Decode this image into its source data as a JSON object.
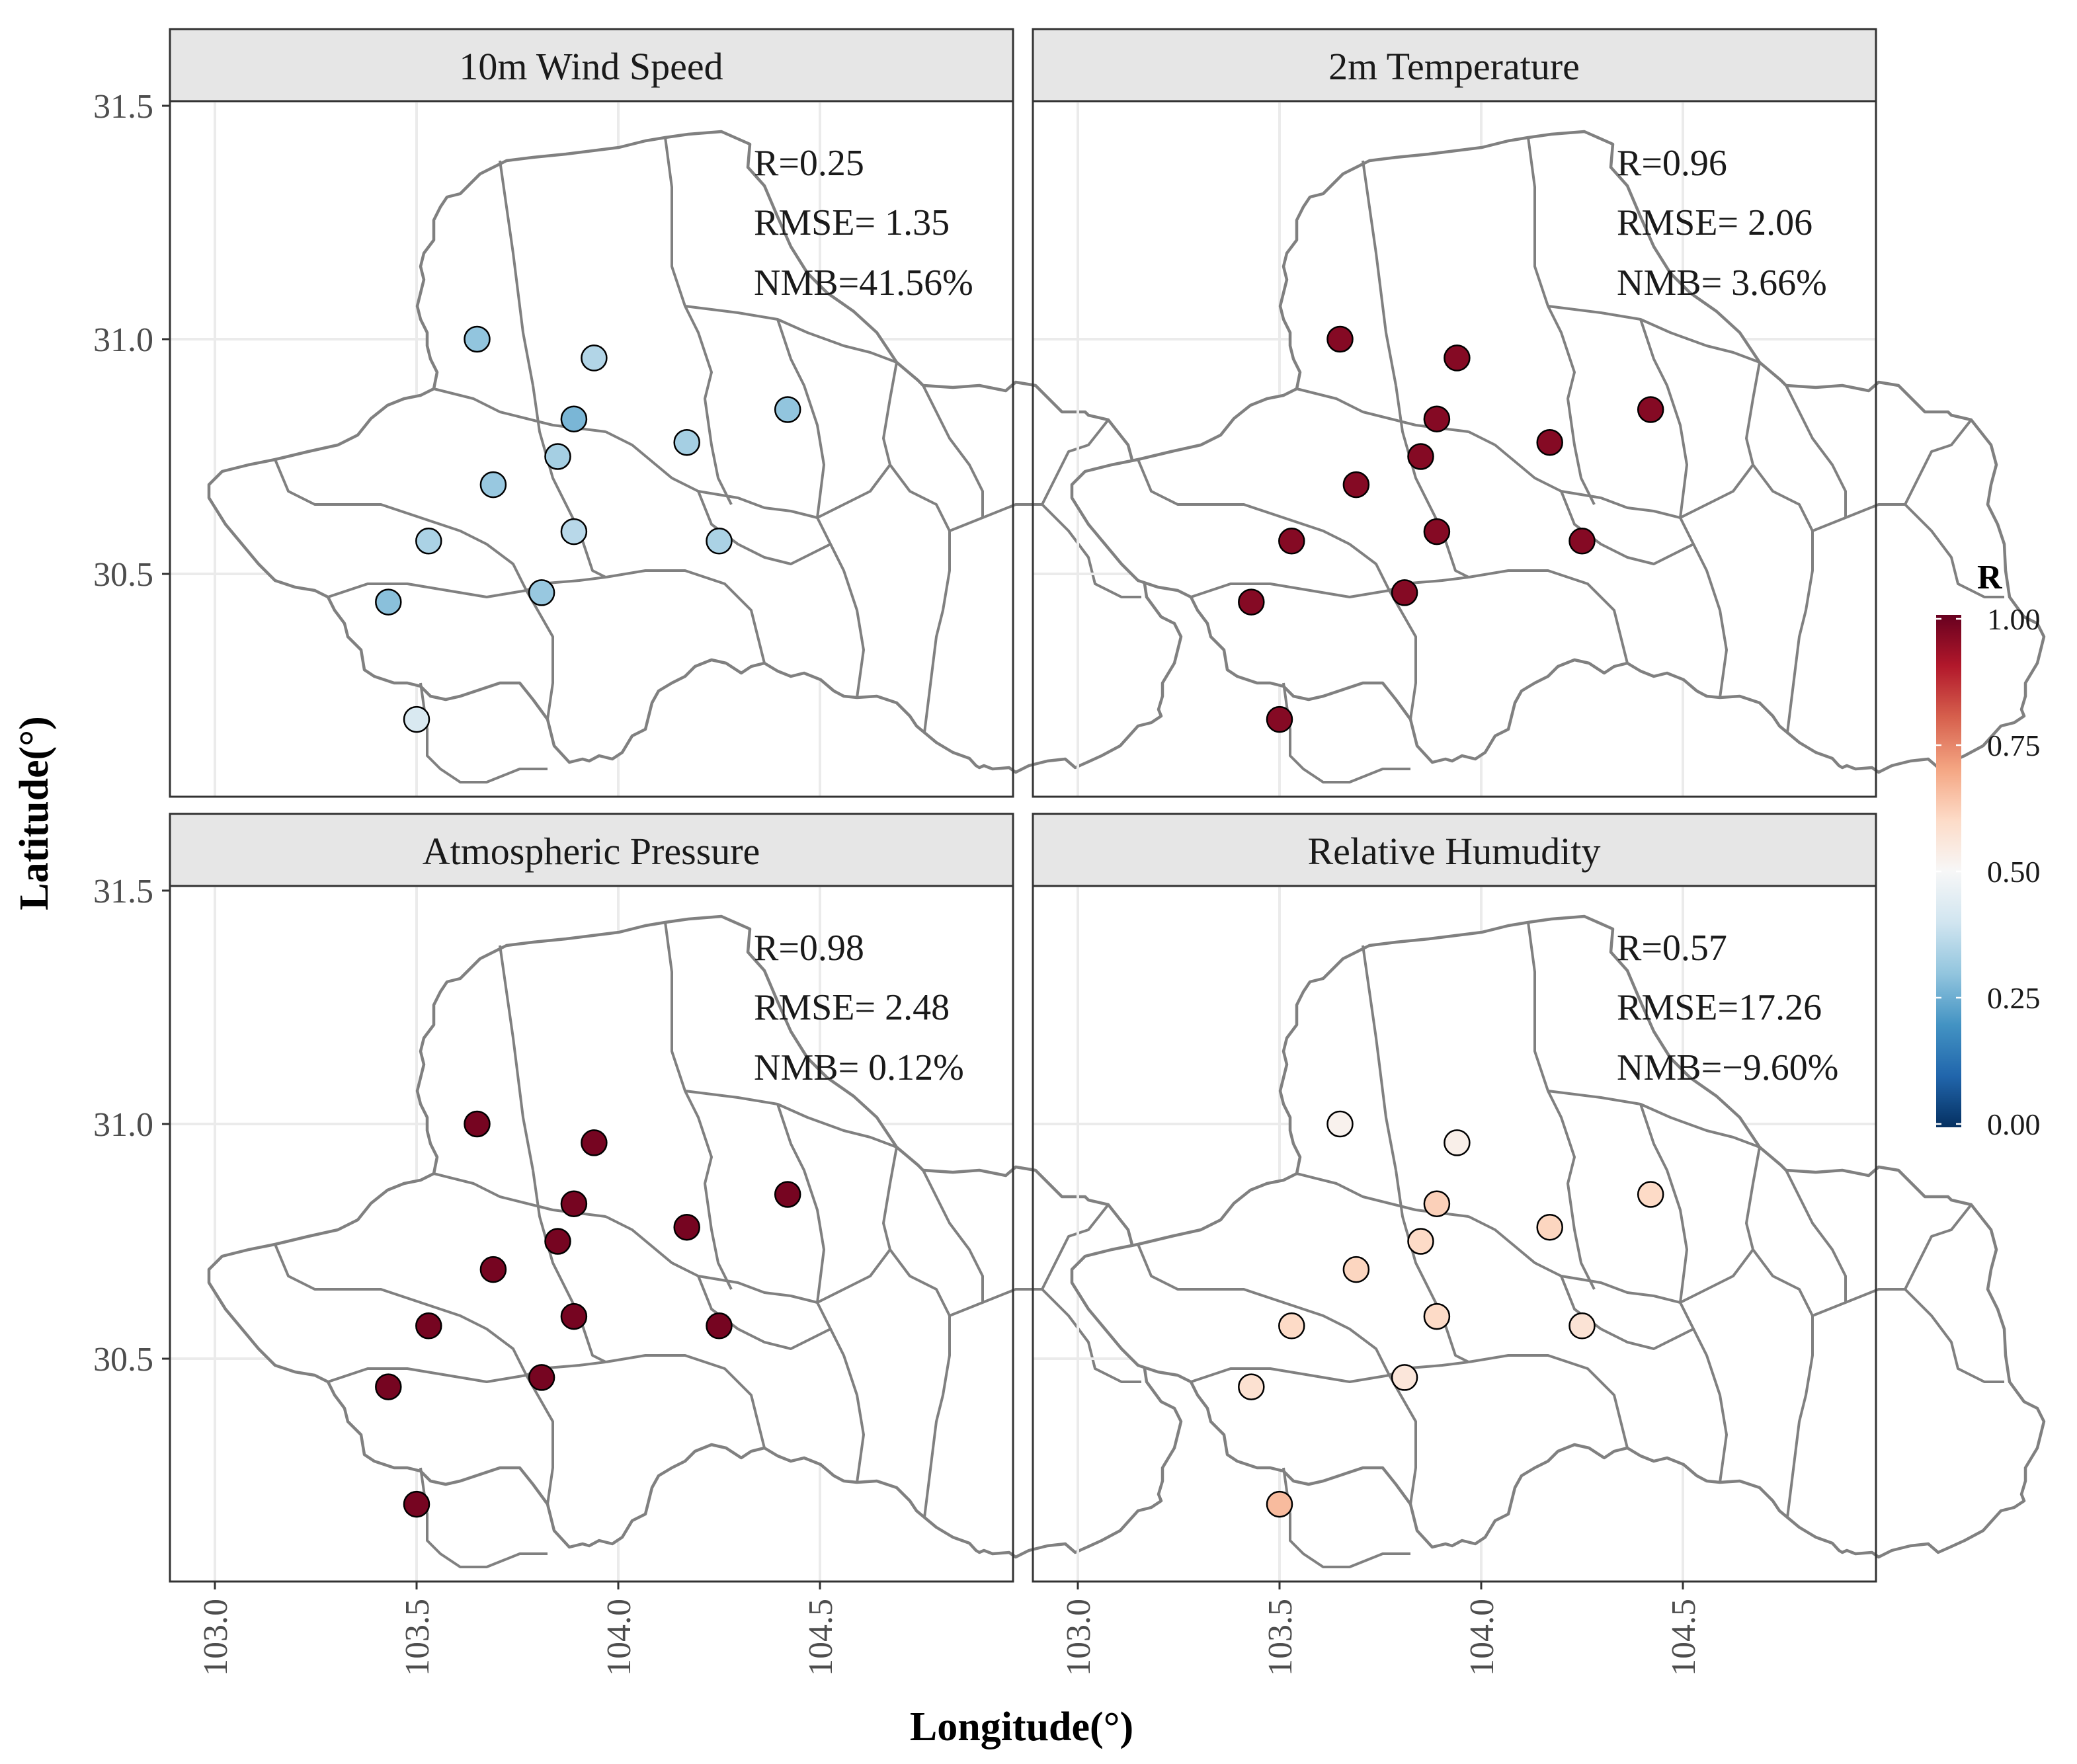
{
  "chart_data": {
    "type": "scatter",
    "facets": [
      {
        "title": "10m Wind Speed",
        "stats": [
          "R=0.25",
          "RMSE= 1.35",
          "NMB=41.56%"
        ],
        "r_values": [
          0.3,
          0.35,
          0.27,
          0.33,
          0.33,
          0.3,
          0.31,
          0.34,
          0.36,
          0.29,
          0.31,
          0.34,
          0.42,
          0.35
        ]
      },
      {
        "title": "2m Temperature",
        "stats": [
          "R=0.96",
          "RMSE= 2.06",
          "NMB= 3.66%"
        ],
        "r_values": [
          0.96,
          0.96,
          0.96,
          0.96,
          0.96,
          0.96,
          0.96,
          0.96,
          0.96,
          0.96,
          0.96,
          0.96,
          0.96,
          0.96
        ]
      },
      {
        "title": "Atmospheric Pressure",
        "stats": [
          "R=0.98",
          "RMSE= 2.48",
          "NMB= 0.12%"
        ],
        "r_values": [
          0.98,
          0.98,
          0.98,
          0.98,
          0.98,
          0.98,
          0.98,
          0.98,
          0.98,
          0.98,
          0.98,
          0.98,
          0.98,
          0.98
        ]
      },
      {
        "title": "Relative Humudity",
        "stats": [
          "R=0.57",
          "RMSE=17.26",
          "NMB=−9.60%"
        ],
        "r_values": [
          0.52,
          0.53,
          0.62,
          0.6,
          0.61,
          0.6,
          0.61,
          0.6,
          0.6,
          0.58,
          0.56,
          0.57,
          0.66,
          0.61
        ]
      }
    ],
    "stations": [
      {
        "lon": 103.65,
        "lat": 31.0
      },
      {
        "lon": 103.94,
        "lat": 30.96
      },
      {
        "lon": 103.89,
        "lat": 30.83
      },
      {
        "lon": 103.85,
        "lat": 30.75
      },
      {
        "lon": 104.17,
        "lat": 30.78
      },
      {
        "lon": 104.42,
        "lat": 30.85
      },
      {
        "lon": 103.69,
        "lat": 30.69
      },
      {
        "lon": 103.53,
        "lat": 30.57
      },
      {
        "lon": 103.89,
        "lat": 30.59
      },
      {
        "lon": 103.43,
        "lat": 30.44
      },
      {
        "lon": 103.81,
        "lat": 30.46
      },
      {
        "lon": 104.25,
        "lat": 30.57
      },
      {
        "lon": 103.5,
        "lat": 30.19
      },
      {
        "lon": 103.5,
        "lat": 30.19
      }
    ],
    "xlabel": "Longitude(°)",
    "ylabel": "Latitude(°)",
    "x_ticks": [
      "103.0",
      "103.5",
      "104.0",
      "104.5"
    ],
    "y_ticks": [
      "31.5",
      "31.0",
      "30.5"
    ],
    "xlim": [
      102.9,
      104.9
    ],
    "ylim": [
      30.05,
      31.65
    ],
    "grid": true,
    "legend": {
      "title": "R",
      "ticks": [
        "1.00",
        "0.75",
        "0.50",
        "0.25",
        "0.00"
      ],
      "range": [
        0,
        1
      ],
      "placement": "right",
      "colors": [
        "#053061",
        "#2166ac",
        "#4393c3",
        "#92c5de",
        "#d1e5f0",
        "#f7f7f7",
        "#fddbc7",
        "#f4a582",
        "#d6604d",
        "#b2182b",
        "#67001f"
      ]
    }
  }
}
